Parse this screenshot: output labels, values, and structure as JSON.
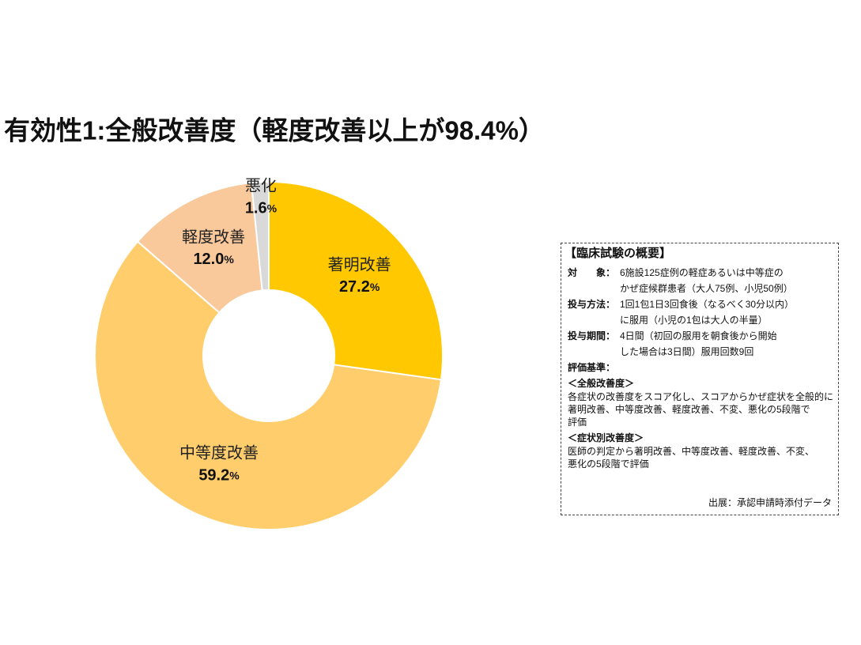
{
  "chart_data": {
    "type": "donut",
    "title": "有効性1:全般改善度（軽度改善以上が98.4%）",
    "categories": [
      "著明改善",
      "中等度改善",
      "軽度改善",
      "悪化"
    ],
    "values": [
      27.2,
      59.2,
      12.0,
      1.6
    ],
    "value_labels": [
      "27.2%",
      "59.2%",
      "12.0%",
      "1.6%"
    ],
    "colors": [
      "#ffc800",
      "#ffcd6b",
      "#f9c89b",
      "#d9d9d9"
    ]
  },
  "info_box": {
    "title": "【臨床試験の概要】",
    "items": [
      {
        "label": "対　　象：",
        "lines": [
          "6施設125症例の軽症あるいは中等症の",
          "かぜ症候群患者（大人75例、小児50例）"
        ]
      },
      {
        "label": "投与方法：",
        "lines": [
          "1回1包1日3回食後（なるべく30分以内）",
          "に服用（小児の1包は大人の半量）"
        ]
      },
      {
        "label": "投与期間：",
        "lines": [
          "4日間（初回の服用を朝食後から開始",
          "した場合は3日間）服用回数9回"
        ]
      }
    ],
    "criteria_label": "評価基準：",
    "sections": [
      {
        "heading": "＜全般改善度＞",
        "lines": [
          "各症状の改善度をスコア化し、スコアからかぜ症状を全般的に",
          "著明改善、中等度改善、軽度改善、不変、悪化の5段階で",
          "評価"
        ]
      },
      {
        "heading": "＜症状別改善度＞",
        "lines": [
          "医師の判定から著明改善、中等度改善、軽度改善、不変、",
          "悪化の5段階で評価"
        ]
      }
    ],
    "source": "出展：承認申請時添付データ"
  }
}
